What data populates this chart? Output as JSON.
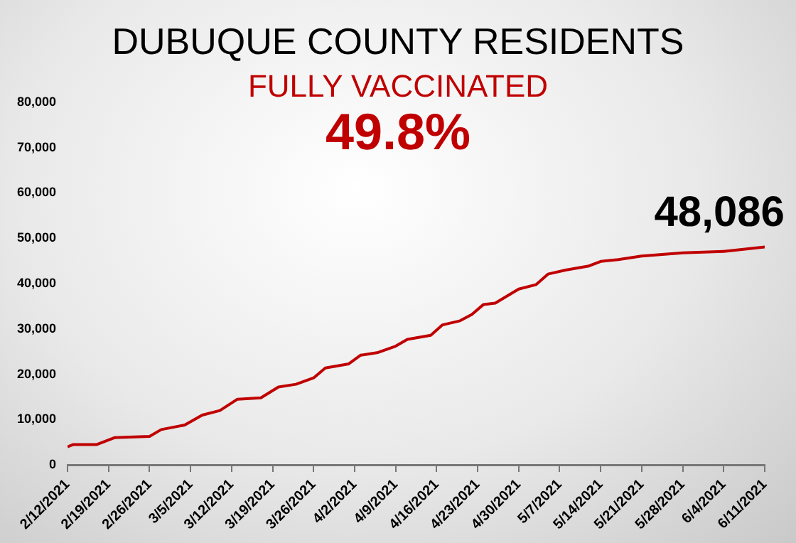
{
  "chart_data": {
    "type": "line",
    "title": "DUBUQUE COUNTY RESIDENTS",
    "subtitle": "FULLY VACCINATED",
    "annotations": [
      "49.8%",
      {
        "text": "48,086",
        "x": "2021-06-11",
        "y": 48086
      }
    ],
    "x": [
      "2021-02-12",
      "2021-02-13",
      "2021-02-17",
      "2021-02-20",
      "2021-02-26",
      "2021-02-28",
      "2021-03-04",
      "2021-03-07",
      "2021-03-10",
      "2021-03-13",
      "2021-03-17",
      "2021-03-20",
      "2021-03-23",
      "2021-03-26",
      "2021-03-28",
      "2021-04-01",
      "2021-04-03",
      "2021-04-06",
      "2021-04-09",
      "2021-04-11",
      "2021-04-15",
      "2021-04-17",
      "2021-04-20",
      "2021-04-22",
      "2021-04-24",
      "2021-04-26",
      "2021-04-30",
      "2021-05-03",
      "2021-05-05",
      "2021-05-08",
      "2021-05-12",
      "2021-05-14",
      "2021-05-17",
      "2021-05-21",
      "2021-05-28",
      "2021-06-04",
      "2021-06-11"
    ],
    "series": [
      {
        "color": "#c00000",
        "values": [
          4000,
          4500,
          4500,
          6000,
          6300,
          7800,
          8800,
          11000,
          12000,
          14500,
          14800,
          17200,
          17800,
          19200,
          21400,
          22300,
          24200,
          24800,
          26200,
          27700,
          28600,
          30900,
          31800,
          33200,
          35400,
          35700,
          38800,
          39800,
          42100,
          43000,
          43900,
          44900,
          45300,
          46100,
          46800,
          47100,
          48086
        ]
      }
    ],
    "xlim": [
      "2021-02-12",
      "2021-06-11"
    ],
    "xticks": [
      {
        "value": "2021-02-12",
        "label": "2/12/2021"
      },
      {
        "value": "2021-02-19",
        "label": "2/19/2021"
      },
      {
        "value": "2021-02-26",
        "label": "2/26/2021"
      },
      {
        "value": "2021-03-05",
        "label": "3/5/2021"
      },
      {
        "value": "2021-03-12",
        "label": "3/12/2021"
      },
      {
        "value": "2021-03-19",
        "label": "3/19/2021"
      },
      {
        "value": "2021-03-26",
        "label": "3/26/2021"
      },
      {
        "value": "2021-04-02",
        "label": "4/2/2021"
      },
      {
        "value": "2021-04-09",
        "label": "4/9/2021"
      },
      {
        "value": "2021-04-16",
        "label": "4/16/2021"
      },
      {
        "value": "2021-04-23",
        "label": "4/23/2021"
      },
      {
        "value": "2021-04-30",
        "label": "4/30/2021"
      },
      {
        "value": "2021-05-07",
        "label": "5/7/2021"
      },
      {
        "value": "2021-05-14",
        "label": "5/14/2021"
      },
      {
        "value": "2021-05-21",
        "label": "5/21/2021"
      },
      {
        "value": "2021-05-28",
        "label": "5/28/2021"
      },
      {
        "value": "2021-06-04",
        "label": "6/4/2021"
      },
      {
        "value": "2021-06-11",
        "label": "6/11/2021"
      }
    ],
    "ylim": [
      0,
      80000
    ],
    "yticks": [
      {
        "value": 0,
        "label": "0"
      },
      {
        "value": 10000,
        "label": "10,000"
      },
      {
        "value": 20000,
        "label": "20,000"
      },
      {
        "value": 30000,
        "label": "30,000"
      },
      {
        "value": 40000,
        "label": "40,000"
      },
      {
        "value": 50000,
        "label": "50,000"
      },
      {
        "value": 60000,
        "label": "60,000"
      },
      {
        "value": 70000,
        "label": "70,000"
      },
      {
        "value": 80000,
        "label": "80,000"
      }
    ],
    "grid": false,
    "legend": false,
    "marker": "none",
    "line_style": "solid"
  }
}
